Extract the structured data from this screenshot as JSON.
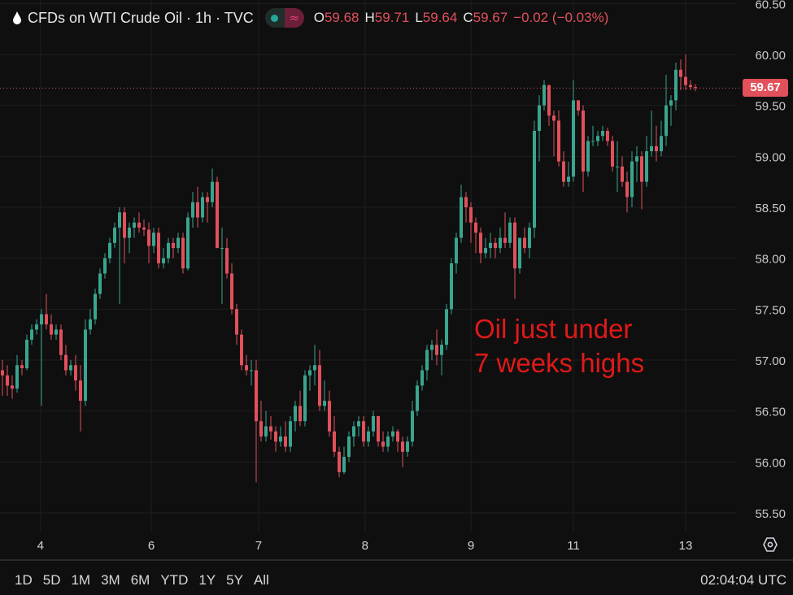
{
  "header": {
    "title": "CFDs on WTI Crude Oil · 1h · TVC",
    "icon": "oil-drop-icon",
    "ohlc": {
      "o_label": "O",
      "o": "59.68",
      "h_label": "H",
      "h": "59.71",
      "l_label": "L",
      "l": "59.64",
      "c_label": "C",
      "c": "59.67",
      "change": "−0.02 (−0.03%)"
    }
  },
  "annotation": {
    "line1": "Oil just under",
    "line2": "7 weeks highs"
  },
  "current_price": "59.67",
  "ranges": [
    "1D",
    "5D",
    "1M",
    "3M",
    "6M",
    "YTD",
    "1Y",
    "5Y",
    "All"
  ],
  "clock": "02:04:04 UTC",
  "colors": {
    "background": "#0f0f0f",
    "up": "#3aa58f",
    "down": "#e2505c",
    "annotation": "#e01919",
    "grid": "#1f1f1f"
  },
  "chart_data": {
    "type": "candlestick",
    "title": "CFDs on WTI Crude Oil · 1h · TVC",
    "interval": "1h",
    "ylim": [
      55.25,
      60.5
    ],
    "y_ticks": [
      "55.50",
      "56.00",
      "56.50",
      "57.00",
      "57.50",
      "58.00",
      "58.50",
      "59.00",
      "59.50",
      "60.00",
      "60.50"
    ],
    "x_ticks": [
      {
        "label": "4",
        "index": 7.8
      },
      {
        "label": "6",
        "index": 30.5
      },
      {
        "label": "7",
        "index": 52.5
      },
      {
        "label": "8",
        "index": 74.3
      },
      {
        "label": "9",
        "index": 96
      },
      {
        "label": "11",
        "index": 117
      },
      {
        "label": "13",
        "index": 140
      }
    ],
    "grid": true,
    "candles_ohlc": [
      [
        56.9,
        57.0,
        56.65,
        56.85
      ],
      [
        56.85,
        56.95,
        56.65,
        56.75
      ],
      [
        56.75,
        56.85,
        56.62,
        56.72
      ],
      [
        56.72,
        57.05,
        56.68,
        56.95
      ],
      [
        56.95,
        57.0,
        56.85,
        56.92
      ],
      [
        56.92,
        57.25,
        56.9,
        57.2
      ],
      [
        57.2,
        57.35,
        57.15,
        57.3
      ],
      [
        57.3,
        57.4,
        57.25,
        57.35
      ],
      [
        57.35,
        57.5,
        56.55,
        57.45
      ],
      [
        57.45,
        57.65,
        57.3,
        57.35
      ],
      [
        57.35,
        57.45,
        57.2,
        57.25
      ],
      [
        57.25,
        57.35,
        57.2,
        57.3
      ],
      [
        57.3,
        57.35,
        57.0,
        57.05
      ],
      [
        57.05,
        57.15,
        56.85,
        56.9
      ],
      [
        56.9,
        57.0,
        56.85,
        56.95
      ],
      [
        56.95,
        57.05,
        56.7,
        56.8
      ],
      [
        56.8,
        56.95,
        56.3,
        56.6
      ],
      [
        56.6,
        57.4,
        56.55,
        57.3
      ],
      [
        57.3,
        57.5,
        57.25,
        57.4
      ],
      [
        57.4,
        57.7,
        57.35,
        57.65
      ],
      [
        57.65,
        57.9,
        57.6,
        57.85
      ],
      [
        57.85,
        58.05,
        57.8,
        58.0
      ],
      [
        58.0,
        58.2,
        57.95,
        58.15
      ],
      [
        58.15,
        58.35,
        58.1,
        58.3
      ],
      [
        58.3,
        58.5,
        57.55,
        58.45
      ],
      [
        58.45,
        58.5,
        57.95,
        58.2
      ],
      [
        58.2,
        58.35,
        58.05,
        58.3
      ],
      [
        58.3,
        58.4,
        58.2,
        58.35
      ],
      [
        58.35,
        58.45,
        58.25,
        58.3
      ],
      [
        58.3,
        58.38,
        58.22,
        58.28
      ],
      [
        58.28,
        58.35,
        57.95,
        58.12
      ],
      [
        58.12,
        58.3,
        58.05,
        58.25
      ],
      [
        58.25,
        58.3,
        57.9,
        57.95
      ],
      [
        57.95,
        58.1,
        57.9,
        58.0
      ],
      [
        58.0,
        58.2,
        57.95,
        58.15
      ],
      [
        58.15,
        58.2,
        58.0,
        58.1
      ],
      [
        58.1,
        58.25,
        58.05,
        58.2
      ],
      [
        58.2,
        58.25,
        57.85,
        57.9
      ],
      [
        57.9,
        58.45,
        57.88,
        58.4
      ],
      [
        58.4,
        58.65,
        58.3,
        58.55
      ],
      [
        58.55,
        58.7,
        58.3,
        58.4
      ],
      [
        58.4,
        58.65,
        58.35,
        58.6
      ],
      [
        58.6,
        58.65,
        58.35,
        58.55
      ],
      [
        58.55,
        58.88,
        58.5,
        58.75
      ],
      [
        58.75,
        58.8,
        58.1,
        58.1
      ],
      [
        58.1,
        58.3,
        57.55,
        58.1
      ],
      [
        58.1,
        58.2,
        57.8,
        57.85
      ],
      [
        57.85,
        57.95,
        57.45,
        57.5
      ],
      [
        57.5,
        57.55,
        57.15,
        57.25
      ],
      [
        57.25,
        57.3,
        56.9,
        56.95
      ],
      [
        56.95,
        57.05,
        56.85,
        56.9
      ],
      [
        56.9,
        57.0,
        56.75,
        56.9
      ],
      [
        56.9,
        57.0,
        55.8,
        56.4
      ],
      [
        56.4,
        56.6,
        56.2,
        56.25
      ],
      [
        56.25,
        56.5,
        56.2,
        56.35
      ],
      [
        56.35,
        56.45,
        56.22,
        56.3
      ],
      [
        56.3,
        56.35,
        56.1,
        56.2
      ],
      [
        56.2,
        56.35,
        56.15,
        56.25
      ],
      [
        56.25,
        56.4,
        56.1,
        56.15
      ],
      [
        56.15,
        56.45,
        56.1,
        56.4
      ],
      [
        56.4,
        56.6,
        56.3,
        56.55
      ],
      [
        56.55,
        56.7,
        56.35,
        56.4
      ],
      [
        56.4,
        56.9,
        56.35,
        56.85
      ],
      [
        56.85,
        56.95,
        56.7,
        56.9
      ],
      [
        56.9,
        57.15,
        56.75,
        56.95
      ],
      [
        56.95,
        57.1,
        56.5,
        56.55
      ],
      [
        56.55,
        56.8,
        56.5,
        56.6
      ],
      [
        56.6,
        56.7,
        56.25,
        56.3
      ],
      [
        56.3,
        56.45,
        56.05,
        56.1
      ],
      [
        56.1,
        56.15,
        55.85,
        55.9
      ],
      [
        55.9,
        56.15,
        55.88,
        56.05
      ],
      [
        56.05,
        56.3,
        56.0,
        56.25
      ],
      [
        56.25,
        56.4,
        56.15,
        56.35
      ],
      [
        56.35,
        56.45,
        56.25,
        56.4
      ],
      [
        56.4,
        56.45,
        56.15,
        56.2
      ],
      [
        56.2,
        56.35,
        56.15,
        56.3
      ],
      [
        56.3,
        56.5,
        56.25,
        56.45
      ],
      [
        56.45,
        56.45,
        56.15,
        56.2
      ],
      [
        56.2,
        56.3,
        56.1,
        56.15
      ],
      [
        56.15,
        56.3,
        56.1,
        56.25
      ],
      [
        56.25,
        56.35,
        56.2,
        56.3
      ],
      [
        56.3,
        56.32,
        56.1,
        56.2
      ],
      [
        56.2,
        56.25,
        55.95,
        56.1
      ],
      [
        56.1,
        56.25,
        56.05,
        56.2
      ],
      [
        56.2,
        56.6,
        56.15,
        56.5
      ],
      [
        56.5,
        56.8,
        56.45,
        56.75
      ],
      [
        56.75,
        56.95,
        56.7,
        56.9
      ],
      [
        56.9,
        57.15,
        56.8,
        57.1
      ],
      [
        57.1,
        57.2,
        57.0,
        57.15
      ],
      [
        57.15,
        57.3,
        56.95,
        57.05
      ],
      [
        57.05,
        57.2,
        56.85,
        57.15
      ],
      [
        57.15,
        57.55,
        57.1,
        57.5
      ],
      [
        57.5,
        58.0,
        57.45,
        57.95
      ],
      [
        57.95,
        58.25,
        57.85,
        58.2
      ],
      [
        58.2,
        58.72,
        58.15,
        58.6
      ],
      [
        58.6,
        58.65,
        58.35,
        58.5
      ],
      [
        58.5,
        58.55,
        58.15,
        58.35
      ],
      [
        58.35,
        58.4,
        58.05,
        58.25
      ],
      [
        58.25,
        58.3,
        57.95,
        58.05
      ],
      [
        58.05,
        58.2,
        58.0,
        58.1
      ],
      [
        58.1,
        58.25,
        58.0,
        58.15
      ],
      [
        58.15,
        58.2,
        58.0,
        58.1
      ],
      [
        58.1,
        58.3,
        58.05,
        58.2
      ],
      [
        58.2,
        58.45,
        58.1,
        58.15
      ],
      [
        58.15,
        58.4,
        58.1,
        58.35
      ],
      [
        58.35,
        58.4,
        57.6,
        57.9
      ],
      [
        57.9,
        58.2,
        57.85,
        58.2
      ],
      [
        58.2,
        58.3,
        58.05,
        58.1
      ],
      [
        58.1,
        58.35,
        58.0,
        58.3
      ],
      [
        58.3,
        59.35,
        58.2,
        59.25
      ],
      [
        59.25,
        59.6,
        58.95,
        59.5
      ],
      [
        59.5,
        59.75,
        59.45,
        59.7
      ],
      [
        59.7,
        59.7,
        59.3,
        59.4
      ],
      [
        59.4,
        59.45,
        59.0,
        59.35
      ],
      [
        59.35,
        59.45,
        58.9,
        58.95
      ],
      [
        58.95,
        59.05,
        58.7,
        58.75
      ],
      [
        58.75,
        58.95,
        58.7,
        58.8
      ],
      [
        58.8,
        59.75,
        58.75,
        59.55
      ],
      [
        59.55,
        59.55,
        59.4,
        59.45
      ],
      [
        59.45,
        59.5,
        58.65,
        58.85
      ],
      [
        58.85,
        59.2,
        58.8,
        59.15
      ],
      [
        59.15,
        59.3,
        59.1,
        59.15
      ],
      [
        59.15,
        59.25,
        59.1,
        59.2
      ],
      [
        59.2,
        59.3,
        59.15,
        59.25
      ],
      [
        59.25,
        59.28,
        59.1,
        59.15
      ],
      [
        59.15,
        59.2,
        58.85,
        58.9
      ],
      [
        58.9,
        59.15,
        58.65,
        58.9
      ],
      [
        58.9,
        59.0,
        58.7,
        58.75
      ],
      [
        58.75,
        58.85,
        58.45,
        58.6
      ],
      [
        58.6,
        59.05,
        58.5,
        58.95
      ],
      [
        58.95,
        59.1,
        58.75,
        59.0
      ],
      [
        59.0,
        59.05,
        58.48,
        58.75
      ],
      [
        58.75,
        59.2,
        58.7,
        59.05
      ],
      [
        59.05,
        59.45,
        59.0,
        59.1
      ],
      [
        59.1,
        59.3,
        58.95,
        59.05
      ],
      [
        59.05,
        59.35,
        59.0,
        59.2
      ],
      [
        59.2,
        59.8,
        59.1,
        59.5
      ],
      [
        59.5,
        59.6,
        59.3,
        59.55
      ],
      [
        59.55,
        59.92,
        59.45,
        59.85
      ],
      [
        59.85,
        59.95,
        59.65,
        59.78
      ],
      [
        59.78,
        60.0,
        59.65,
        59.7
      ],
      [
        59.7,
        59.75,
        59.65,
        59.68
      ],
      [
        59.68,
        59.71,
        59.64,
        59.67
      ]
    ]
  }
}
